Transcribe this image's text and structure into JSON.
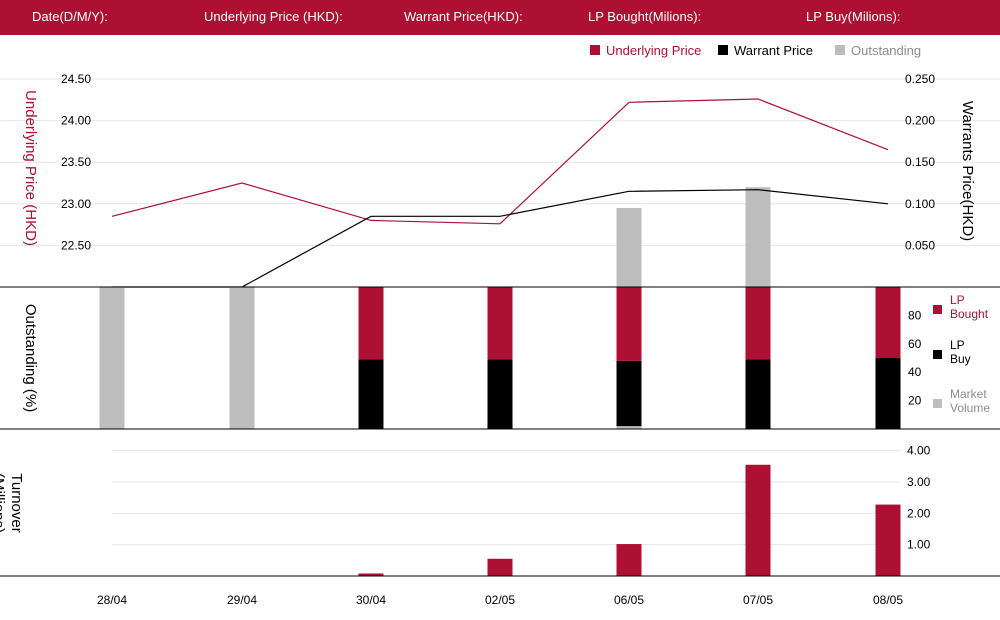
{
  "header": {
    "date": "Date(D/M/Y):",
    "underlying": "Underlying Price (HKD):",
    "warrant": "Warrant  Price(HKD):",
    "lp_bought": "LP Bought(Milions):",
    "lp_buy": "LP Buy(Milions):"
  },
  "colors": {
    "underlying": "#ae1033",
    "warrant": "#000000",
    "outstanding": "#bdbdbd",
    "lp_bought": "#ae1033",
    "lp_buy": "#000000",
    "market_volume": "#bdbdbd",
    "turnover": "#ae1033",
    "header_bg": "#ae1033"
  },
  "chart_data": [
    {
      "type": "line",
      "legend": [
        "Underlying Price",
        "Warrant  Price",
        "Outstanding"
      ],
      "legend_position": "top-right",
      "categories": [
        "28/04",
        "29/04",
        "30/04",
        "02/05",
        "06/05",
        "07/05",
        "08/05"
      ],
      "y_left_label": "Underlying Price (HKD)",
      "y_left_ticks": [
        "22.50",
        "23.00",
        "23.50",
        "24.00",
        "24.50"
      ],
      "y_left_range": [
        22.0,
        24.5
      ],
      "y_right_label": "Warrants  Price(HKD)",
      "y_right_ticks": [
        "0.050",
        "0.100",
        "0.150",
        "0.200",
        "0.250"
      ],
      "y_right_range": [
        0.0,
        0.25
      ],
      "grid": true,
      "series": [
        {
          "name": "Underlying Price",
          "axis": "left",
          "values": [
            22.85,
            23.25,
            22.8,
            22.76,
            24.22,
            24.26,
            23.65
          ]
        },
        {
          "name": "Warrant  Price",
          "axis": "right",
          "values": [
            0.0,
            0.0,
            0.085,
            0.085,
            0.115,
            0.117,
            0.1
          ]
        }
      ],
      "outstanding_bars": [
        null,
        null,
        null,
        null,
        0.095,
        0.12,
        null
      ]
    },
    {
      "type": "bar",
      "stacked": true,
      "y_left_label": "Outstanding (%)",
      "y_right_ticks": [
        "20",
        "40",
        "60",
        "80"
      ],
      "y_range": [
        0,
        100
      ],
      "legend": [
        "LP Bought",
        "LP Buy",
        "Market Volume"
      ],
      "legend_position": "right",
      "categories": [
        "28/04",
        "29/04",
        "30/04",
        "02/05",
        "06/05",
        "07/05",
        "08/05"
      ],
      "series": [
        {
          "name": "Market Volume",
          "values": [
            100,
            100,
            0,
            0,
            2,
            0,
            0
          ]
        },
        {
          "name": "LP Buy",
          "values": [
            0,
            0,
            49,
            49,
            46,
            49,
            50
          ]
        },
        {
          "name": "LP Bought",
          "values": [
            0,
            0,
            51,
            51,
            52,
            51,
            50
          ]
        }
      ]
    },
    {
      "type": "bar",
      "y_left_label": "Turnover (Millions)",
      "y_right_ticks": [
        "1.00",
        "2.00",
        "3.00",
        "4.00"
      ],
      "y_range": [
        0,
        4.5
      ],
      "grid": true,
      "categories": [
        "28/04",
        "29/04",
        "30/04",
        "02/05",
        "06/05",
        "07/05",
        "08/05"
      ],
      "series": [
        {
          "values": [
            0,
            0,
            0.08,
            0.55,
            1.02,
            3.55,
            2.28
          ]
        }
      ]
    }
  ]
}
